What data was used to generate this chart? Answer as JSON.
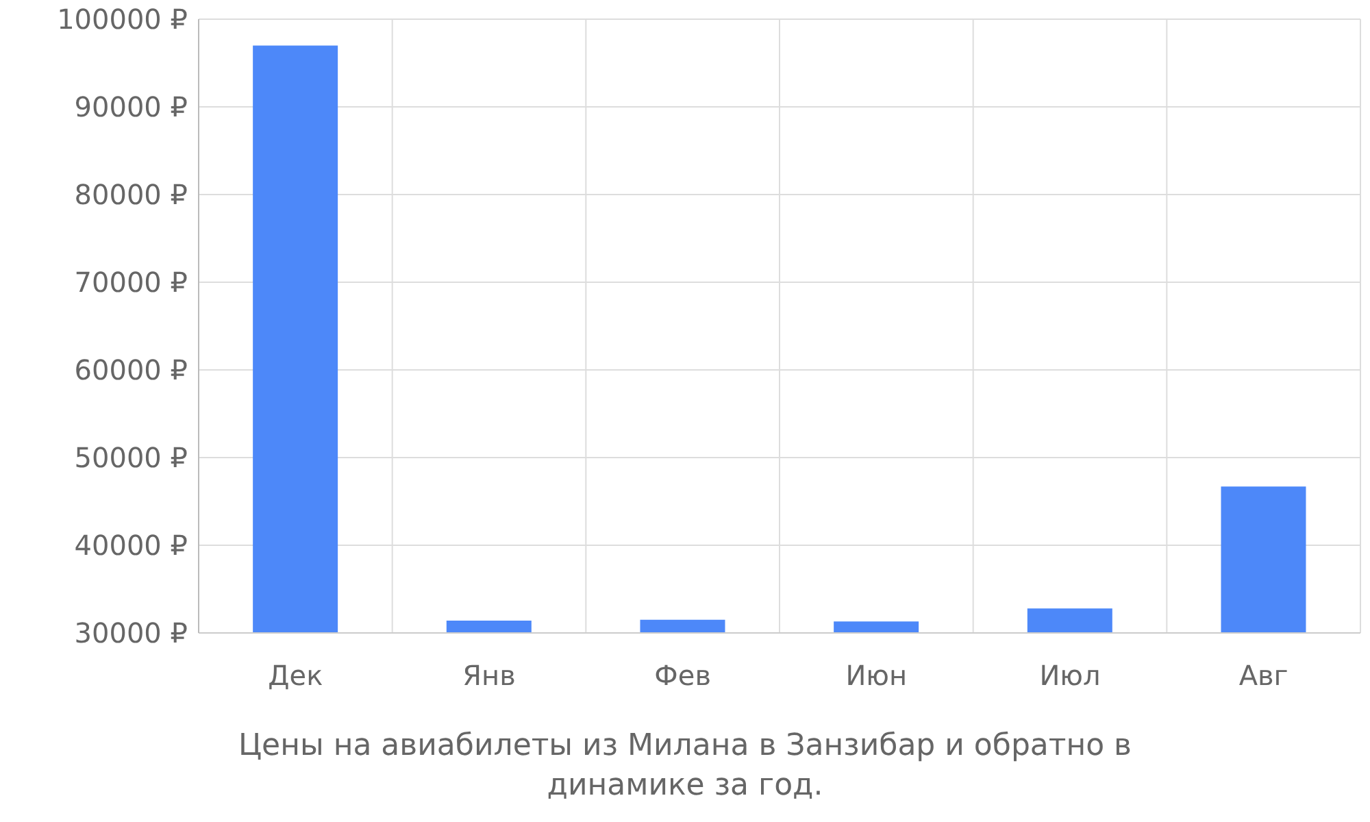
{
  "chart_data": {
    "type": "bar",
    "categories": [
      "Дек",
      "Янв",
      "Фев",
      "Июн",
      "Июл",
      "Авг"
    ],
    "values": [
      97000,
      31400,
      31500,
      31300,
      32800,
      46700
    ],
    "color": "#4d88f9",
    "ylim": [
      30000,
      100000
    ],
    "yticks": [
      {
        "value": 30000,
        "label": "30000 ₽"
      },
      {
        "value": 40000,
        "label": "40000 ₽"
      },
      {
        "value": 50000,
        "label": "50000 ₽"
      },
      {
        "value": 60000,
        "label": "60000 ₽"
      },
      {
        "value": 70000,
        "label": "70000 ₽"
      },
      {
        "value": 80000,
        "label": "80000 ₽"
      },
      {
        "value": 90000,
        "label": "90000 ₽"
      },
      {
        "value": 100000,
        "label": "100000 ₽"
      }
    ],
    "grid": true,
    "annotations": [
      "Цены на авиабилеты из Милана в Занзибар и обратно в динамике за год."
    ]
  }
}
